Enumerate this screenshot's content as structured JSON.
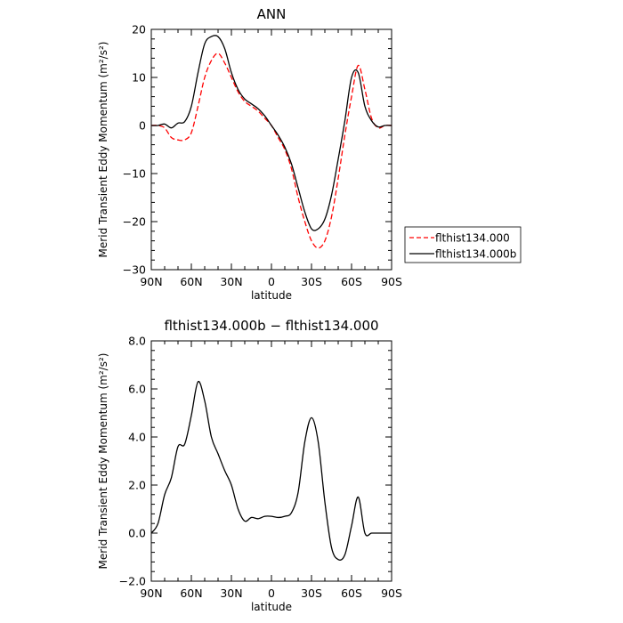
{
  "chart_data": [
    {
      "type": "line",
      "title": "ANN",
      "xlabel": "latitude",
      "ylabel": "Merid Transient Eddy Momentum (m²/s²)",
      "x_tick_labels": [
        "90N",
        "60N",
        "30N",
        "0",
        "30S",
        "60S",
        "90S"
      ],
      "x_ticks": [
        90,
        60,
        30,
        0,
        -30,
        -60,
        -90
      ],
      "xlim": [
        90,
        -90
      ],
      "y_ticks": [
        20,
        10,
        0,
        -10,
        -20,
        -30
      ],
      "y_tick_labels": [
        "20",
        "10",
        "0",
        "−10",
        "−20",
        "−30"
      ],
      "ylim": [
        -30,
        20
      ],
      "legend_position": "right",
      "series": [
        {
          "name": "flthist134.000",
          "color": "#ff0000",
          "dash": "dashed",
          "x": [
            90,
            85,
            80,
            75,
            70,
            65,
            60,
            55,
            50,
            45,
            40,
            35,
            30,
            25,
            20,
            15,
            10,
            5,
            0,
            -5,
            -10,
            -15,
            -20,
            -25,
            -30,
            -35,
            -40,
            -45,
            -50,
            -55,
            -60,
            -65,
            -70,
            -75,
            -80,
            -85,
            -90
          ],
          "y": [
            0,
            0,
            -0.5,
            -2.5,
            -3,
            -3,
            -1.5,
            4,
            10,
            13.5,
            15,
            13,
            10,
            7,
            5,
            4,
            3,
            1.5,
            0,
            -2.5,
            -5,
            -9,
            -15,
            -20,
            -24,
            -25.5,
            -24,
            -19,
            -11,
            -2,
            6,
            12.5,
            7.5,
            1.5,
            -0.5,
            0,
            0
          ]
        },
        {
          "name": "flthist134.000b",
          "color": "#000000",
          "dash": "solid",
          "x": [
            90,
            85,
            80,
            75,
            70,
            65,
            60,
            55,
            50,
            45,
            40,
            35,
            30,
            25,
            20,
            15,
            10,
            5,
            0,
            -5,
            -10,
            -15,
            -20,
            -25,
            -30,
            -35,
            -40,
            -45,
            -50,
            -55,
            -60,
            -65,
            -70,
            -75,
            -80,
            -85,
            -90
          ],
          "y": [
            0,
            0,
            0.3,
            -0.5,
            0.5,
            0.8,
            4,
            11,
            17,
            18.5,
            18.5,
            16,
            11,
            7.5,
            5.5,
            4.5,
            3.5,
            2,
            0,
            -2,
            -4.5,
            -8,
            -13,
            -18,
            -21.5,
            -21.5,
            -19.5,
            -14.5,
            -7,
            1,
            10,
            11,
            4,
            1,
            -0.3,
            0,
            0
          ]
        }
      ]
    },
    {
      "type": "line",
      "title": "flthist134.000b − flthist134.000",
      "xlabel": "latitude",
      "ylabel": "Merid Transient Eddy Momentum (m²/s²)",
      "x_tick_labels": [
        "90N",
        "60N",
        "30N",
        "0",
        "30S",
        "60S",
        "90S"
      ],
      "x_ticks": [
        90,
        60,
        30,
        0,
        -30,
        -60,
        -90
      ],
      "xlim": [
        90,
        -90
      ],
      "y_ticks": [
        8,
        6,
        4,
        2,
        0,
        -2
      ],
      "y_tick_labels": [
        "8.0",
        "6.0",
        "4.0",
        "2.0",
        "0.0",
        "−2.0"
      ],
      "ylim": [
        -2,
        8
      ],
      "series": [
        {
          "color": "#000000",
          "dash": "solid",
          "x": [
            90,
            85,
            80,
            75,
            70,
            65,
            60,
            55,
            50,
            45,
            40,
            35,
            30,
            25,
            20,
            15,
            10,
            5,
            0,
            -5,
            -10,
            -15,
            -20,
            -25,
            -30,
            -35,
            -40,
            -45,
            -50,
            -55,
            -60,
            -65,
            -70,
            -75,
            -80,
            -85,
            -90
          ],
          "y": [
            0,
            0.4,
            1.6,
            2.3,
            3.6,
            3.7,
            4.9,
            6.3,
            5.5,
            4,
            3.3,
            2.6,
            2,
            1,
            0.5,
            0.65,
            0.6,
            0.7,
            0.7,
            0.65,
            0.7,
            0.85,
            1.7,
            3.8,
            4.8,
            3.8,
            1.3,
            -0.6,
            -1.1,
            -0.9,
            0.3,
            1.5,
            0,
            0,
            0,
            0,
            0
          ]
        }
      ]
    }
  ]
}
